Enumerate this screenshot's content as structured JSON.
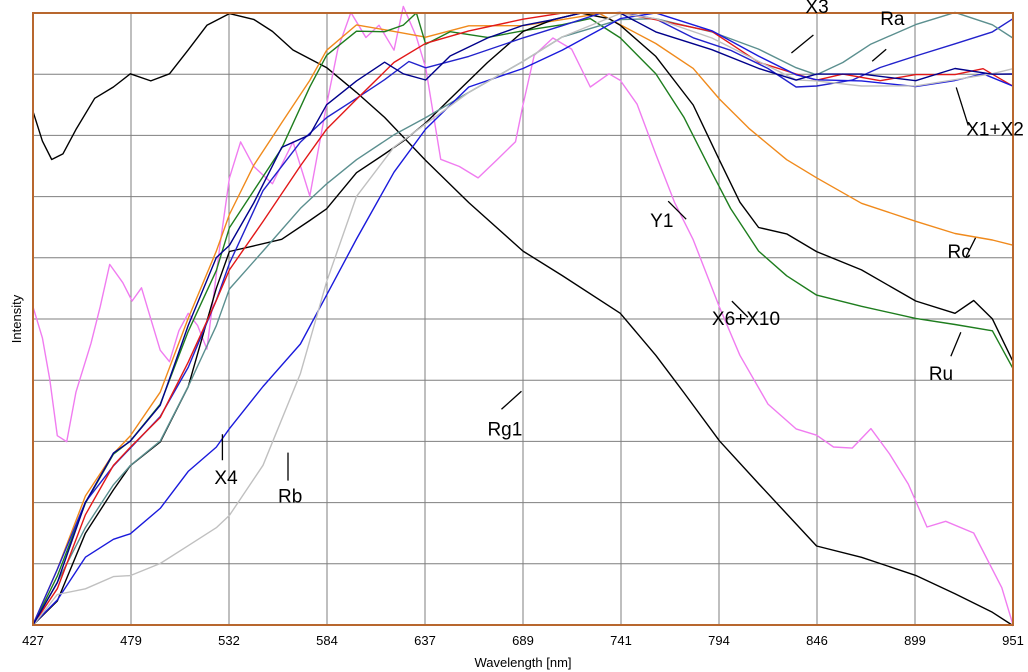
{
  "chart_data": {
    "type": "line",
    "xlabel": "Wavelength [nm]",
    "ylabel": "Intensity",
    "xlim": [
      427,
      951
    ],
    "ylim": [
      0,
      10
    ],
    "grid": true,
    "x_ticks": [
      "427",
      "479",
      "532",
      "584",
      "637",
      "689",
      "741",
      "794",
      "846",
      "899",
      "951"
    ],
    "y_gridlines": 10,
    "colors": {
      "frame": "#b8672e",
      "grid": "#7f7f7f",
      "Rg1": "#000000",
      "Y1": "#f07cf0",
      "Rc": "#f08a1c",
      "Ru": "#1e7d1e",
      "X6+X10": "#000000",
      "X3": "#2222cc",
      "Ra": "#5b8f8f",
      "X1+X2": "#e21818",
      "X4": "#1a1adc",
      "Rb": "#c0c0c0",
      "navy": "#00008b"
    },
    "series": [
      {
        "name": "Rg1",
        "x": [
          427,
          432,
          437,
          443,
          450,
          460,
          470,
          479,
          490,
          500,
          510,
          520,
          532,
          545,
          555,
          566,
          584,
          600,
          615,
          637,
          660,
          689,
          710,
          741,
          760,
          775,
          794,
          815,
          846,
          870,
          899,
          920,
          940,
          951
        ],
        "y": [
          8.4,
          7.9,
          7.6,
          7.7,
          8.1,
          8.6,
          8.8,
          9.0,
          8.9,
          9.0,
          9.4,
          9.8,
          10.0,
          9.9,
          9.7,
          9.4,
          9.1,
          8.7,
          8.3,
          7.6,
          6.9,
          6.1,
          5.7,
          5.1,
          4.4,
          3.8,
          3.0,
          2.3,
          1.3,
          1.1,
          0.8,
          0.5,
          0.2,
          0.0
        ]
      },
      {
        "name": "Y1",
        "x": [
          427,
          432,
          436,
          440,
          445,
          450,
          458,
          463,
          468,
          475,
          480,
          485,
          490,
          495,
          500,
          505,
          510,
          515,
          520,
          527,
          532,
          538,
          545,
          555,
          566,
          575,
          584,
          590,
          597,
          605,
          612,
          620,
          625,
          632,
          637,
          645,
          655,
          665,
          675,
          685,
          689,
          695,
          705,
          715,
          725,
          735,
          741,
          750,
          760,
          770,
          780,
          794,
          805,
          820,
          835,
          846,
          855,
          865,
          875,
          885,
          895,
          905,
          915,
          930,
          945,
          951
        ],
        "y": [
          5.2,
          4.7,
          4.0,
          3.1,
          3.0,
          3.8,
          4.6,
          5.2,
          5.9,
          5.6,
          5.3,
          5.5,
          5.0,
          4.5,
          4.3,
          4.8,
          5.1,
          4.9,
          4.5,
          6.2,
          7.3,
          7.9,
          7.5,
          7.2,
          7.9,
          7.0,
          8.5,
          9.4,
          10.0,
          9.6,
          9.8,
          9.4,
          10.1,
          9.6,
          9.1,
          7.6,
          7.5,
          7.3,
          7.6,
          7.9,
          8.5,
          9.3,
          9.6,
          9.4,
          8.8,
          9.0,
          8.9,
          8.5,
          7.7,
          6.9,
          6.3,
          5.2,
          4.4,
          3.6,
          3.2,
          3.1,
          2.9,
          2.9,
          3.2,
          2.8,
          2.3,
          1.6,
          1.7,
          1.5,
          0.6,
          0.0
        ]
      },
      {
        "name": "Rc",
        "x": [
          427,
          440,
          455,
          470,
          479,
          495,
          510,
          525,
          532,
          545,
          560,
          575,
          584,
          600,
          620,
          637,
          660,
          689,
          710,
          730,
          741,
          760,
          780,
          794,
          810,
          830,
          846,
          870,
          899,
          920,
          940,
          951
        ],
        "y": [
          0.0,
          0.9,
          2.1,
          2.8,
          3.1,
          3.8,
          5.0,
          6.1,
          6.7,
          7.5,
          8.2,
          8.9,
          9.4,
          9.8,
          9.7,
          9.6,
          9.8,
          9.8,
          9.9,
          10.0,
          9.8,
          9.5,
          9.1,
          8.6,
          8.1,
          7.6,
          7.3,
          6.9,
          6.6,
          6.4,
          6.3,
          6.2
        ]
      },
      {
        "name": "Ru",
        "x": [
          427,
          440,
          455,
          470,
          479,
          495,
          510,
          525,
          532,
          545,
          560,
          575,
          584,
          600,
          615,
          625,
          632,
          637,
          650,
          670,
          689,
          710,
          725,
          741,
          760,
          775,
          790,
          800,
          815,
          830,
          846,
          870,
          899,
          920,
          940,
          951
        ],
        "y": [
          0.0,
          0.8,
          2.0,
          2.8,
          3.0,
          3.6,
          4.8,
          5.8,
          6.5,
          7.1,
          7.8,
          8.8,
          9.3,
          9.7,
          9.7,
          9.8,
          10.0,
          9.5,
          9.7,
          9.6,
          9.7,
          9.8,
          9.9,
          9.6,
          9.0,
          8.3,
          7.4,
          6.8,
          6.1,
          5.7,
          5.4,
          5.2,
          5.0,
          4.9,
          4.8,
          4.2
        ]
      },
      {
        "name": "X6+X10",
        "x": [
          427,
          440,
          455,
          470,
          479,
          495,
          510,
          525,
          532,
          545,
          560,
          575,
          584,
          600,
          615,
          625,
          637,
          650,
          670,
          689,
          705,
          720,
          735,
          741,
          760,
          780,
          794,
          805,
          815,
          830,
          846,
          870,
          899,
          920,
          930,
          940,
          951
        ],
        "y": [
          0.0,
          0.4,
          1.5,
          2.2,
          2.6,
          3.0,
          3.9,
          5.5,
          6.1,
          6.2,
          6.3,
          6.6,
          6.8,
          7.4,
          7.7,
          7.9,
          8.2,
          8.6,
          9.2,
          9.7,
          9.9,
          10.0,
          9.9,
          9.8,
          9.3,
          8.5,
          7.6,
          6.9,
          6.5,
          6.4,
          6.1,
          5.8,
          5.3,
          5.1,
          5.3,
          5.0,
          4.3
        ]
      },
      {
        "name": "X3",
        "x": [
          427,
          440,
          455,
          470,
          479,
          495,
          510,
          525,
          532,
          550,
          570,
          584,
          600,
          615,
          628,
          637,
          660,
          689,
          710,
          730,
          741,
          760,
          780,
          800,
          820,
          835,
          846,
          865,
          880,
          899,
          920,
          940,
          951
        ],
        "y": [
          0.0,
          0.9,
          2.0,
          2.6,
          2.9,
          3.4,
          4.2,
          5.3,
          5.9,
          7.1,
          7.9,
          8.3,
          8.6,
          8.9,
          9.2,
          9.1,
          9.3,
          9.6,
          9.8,
          10.0,
          10.0,
          9.9,
          9.6,
          9.4,
          9.1,
          8.8,
          8.8,
          8.9,
          9.1,
          9.3,
          9.5,
          9.7,
          9.9
        ]
      },
      {
        "name": "Ra",
        "x": [
          427,
          440,
          455,
          470,
          479,
          495,
          510,
          525,
          532,
          550,
          570,
          584,
          600,
          620,
          637,
          660,
          689,
          710,
          741,
          760,
          790,
          815,
          835,
          846,
          860,
          875,
          899,
          920,
          940,
          951
        ],
        "y": [
          0.0,
          0.7,
          1.6,
          2.3,
          2.6,
          3.0,
          3.9,
          4.9,
          5.5,
          6.1,
          6.8,
          7.2,
          7.6,
          8.0,
          8.3,
          8.7,
          9.2,
          9.6,
          9.9,
          9.9,
          9.7,
          9.4,
          9.1,
          9.0,
          9.2,
          9.5,
          9.8,
          10.0,
          9.8,
          9.6
        ]
      },
      {
        "name": "X1+X2",
        "x": [
          427,
          440,
          455,
          470,
          479,
          495,
          510,
          525,
          532,
          550,
          570,
          584,
          600,
          620,
          637,
          660,
          689,
          710,
          741,
          760,
          790,
          815,
          835,
          846,
          860,
          880,
          899,
          920,
          935,
          945,
          951
        ],
        "y": [
          0.0,
          0.6,
          1.8,
          2.6,
          2.9,
          3.4,
          4.3,
          5.3,
          5.8,
          6.6,
          7.5,
          8.1,
          8.6,
          9.2,
          9.5,
          9.7,
          9.9,
          10.0,
          10.0,
          9.9,
          9.7,
          9.2,
          9.0,
          8.9,
          9.0,
          8.9,
          9.0,
          9.0,
          9.1,
          8.9,
          8.8
        ]
      },
      {
        "name": "X4",
        "x": [
          427,
          440,
          455,
          470,
          479,
          495,
          510,
          525,
          532,
          550,
          570,
          584,
          600,
          620,
          637,
          660,
          689,
          710,
          741,
          760,
          790,
          815,
          835,
          846,
          870,
          899,
          920,
          935,
          951
        ],
        "y": [
          0.0,
          0.4,
          1.1,
          1.4,
          1.5,
          1.9,
          2.5,
          2.9,
          3.2,
          3.9,
          4.6,
          5.4,
          6.3,
          7.4,
          8.1,
          8.8,
          9.1,
          9.4,
          9.9,
          10.0,
          9.7,
          9.3,
          9.0,
          8.9,
          8.9,
          8.8,
          8.9,
          9.0,
          8.8
        ]
      },
      {
        "name": "Rb",
        "x": [
          427,
          440,
          455,
          470,
          479,
          495,
          510,
          525,
          532,
          550,
          570,
          584,
          600,
          620,
          637,
          660,
          689,
          710,
          741,
          760,
          790,
          815,
          835,
          846,
          870,
          899,
          920,
          940,
          951
        ],
        "y": [
          0.0,
          0.5,
          0.6,
          0.8,
          0.8,
          1.0,
          1.3,
          1.6,
          1.8,
          2.6,
          4.1,
          5.6,
          7.0,
          7.8,
          8.2,
          8.7,
          9.2,
          9.6,
          10.0,
          9.9,
          9.6,
          9.2,
          8.9,
          8.9,
          8.8,
          8.8,
          8.9,
          9.0,
          9.1
        ]
      },
      {
        "name": "",
        "x": [
          427,
          440,
          455,
          470,
          479,
          495,
          510,
          525,
          532,
          545,
          560,
          575,
          584,
          600,
          615,
          625,
          637,
          650,
          670,
          689,
          705,
          720,
          741,
          760,
          790,
          815,
          835,
          846,
          870,
          899,
          920,
          940,
          951
        ],
        "y": [
          0.0,
          0.7,
          2.0,
          2.8,
          3.0,
          3.6,
          4.9,
          6.0,
          6.2,
          6.9,
          7.8,
          8.0,
          8.5,
          8.9,
          9.2,
          9.0,
          8.9,
          9.3,
          9.6,
          9.8,
          9.9,
          10.0,
          10.0,
          9.7,
          9.4,
          9.1,
          8.9,
          9.0,
          9.0,
          8.9,
          9.1,
          9.0,
          9.0
        ]
      }
    ],
    "annotations": [
      {
        "text": "X3",
        "x": 840,
        "y": 10.0
      },
      {
        "text": "Ra",
        "x": 880,
        "y": 9.8
      },
      {
        "text": "X1+X2",
        "x": 926,
        "y": 8.0
      },
      {
        "text": "Y1",
        "x": 757,
        "y": 6.5
      },
      {
        "text": "Rc",
        "x": 916,
        "y": 6.0
      },
      {
        "text": "X6+X10",
        "x": 790,
        "y": 4.9
      },
      {
        "text": "Ru",
        "x": 906,
        "y": 4.0
      },
      {
        "text": "Rg1",
        "x": 670,
        "y": 3.1
      },
      {
        "text": "X4",
        "x": 524,
        "y": 2.3
      },
      {
        "text": "Rb",
        "x": 558,
        "y": 2.0
      }
    ]
  }
}
